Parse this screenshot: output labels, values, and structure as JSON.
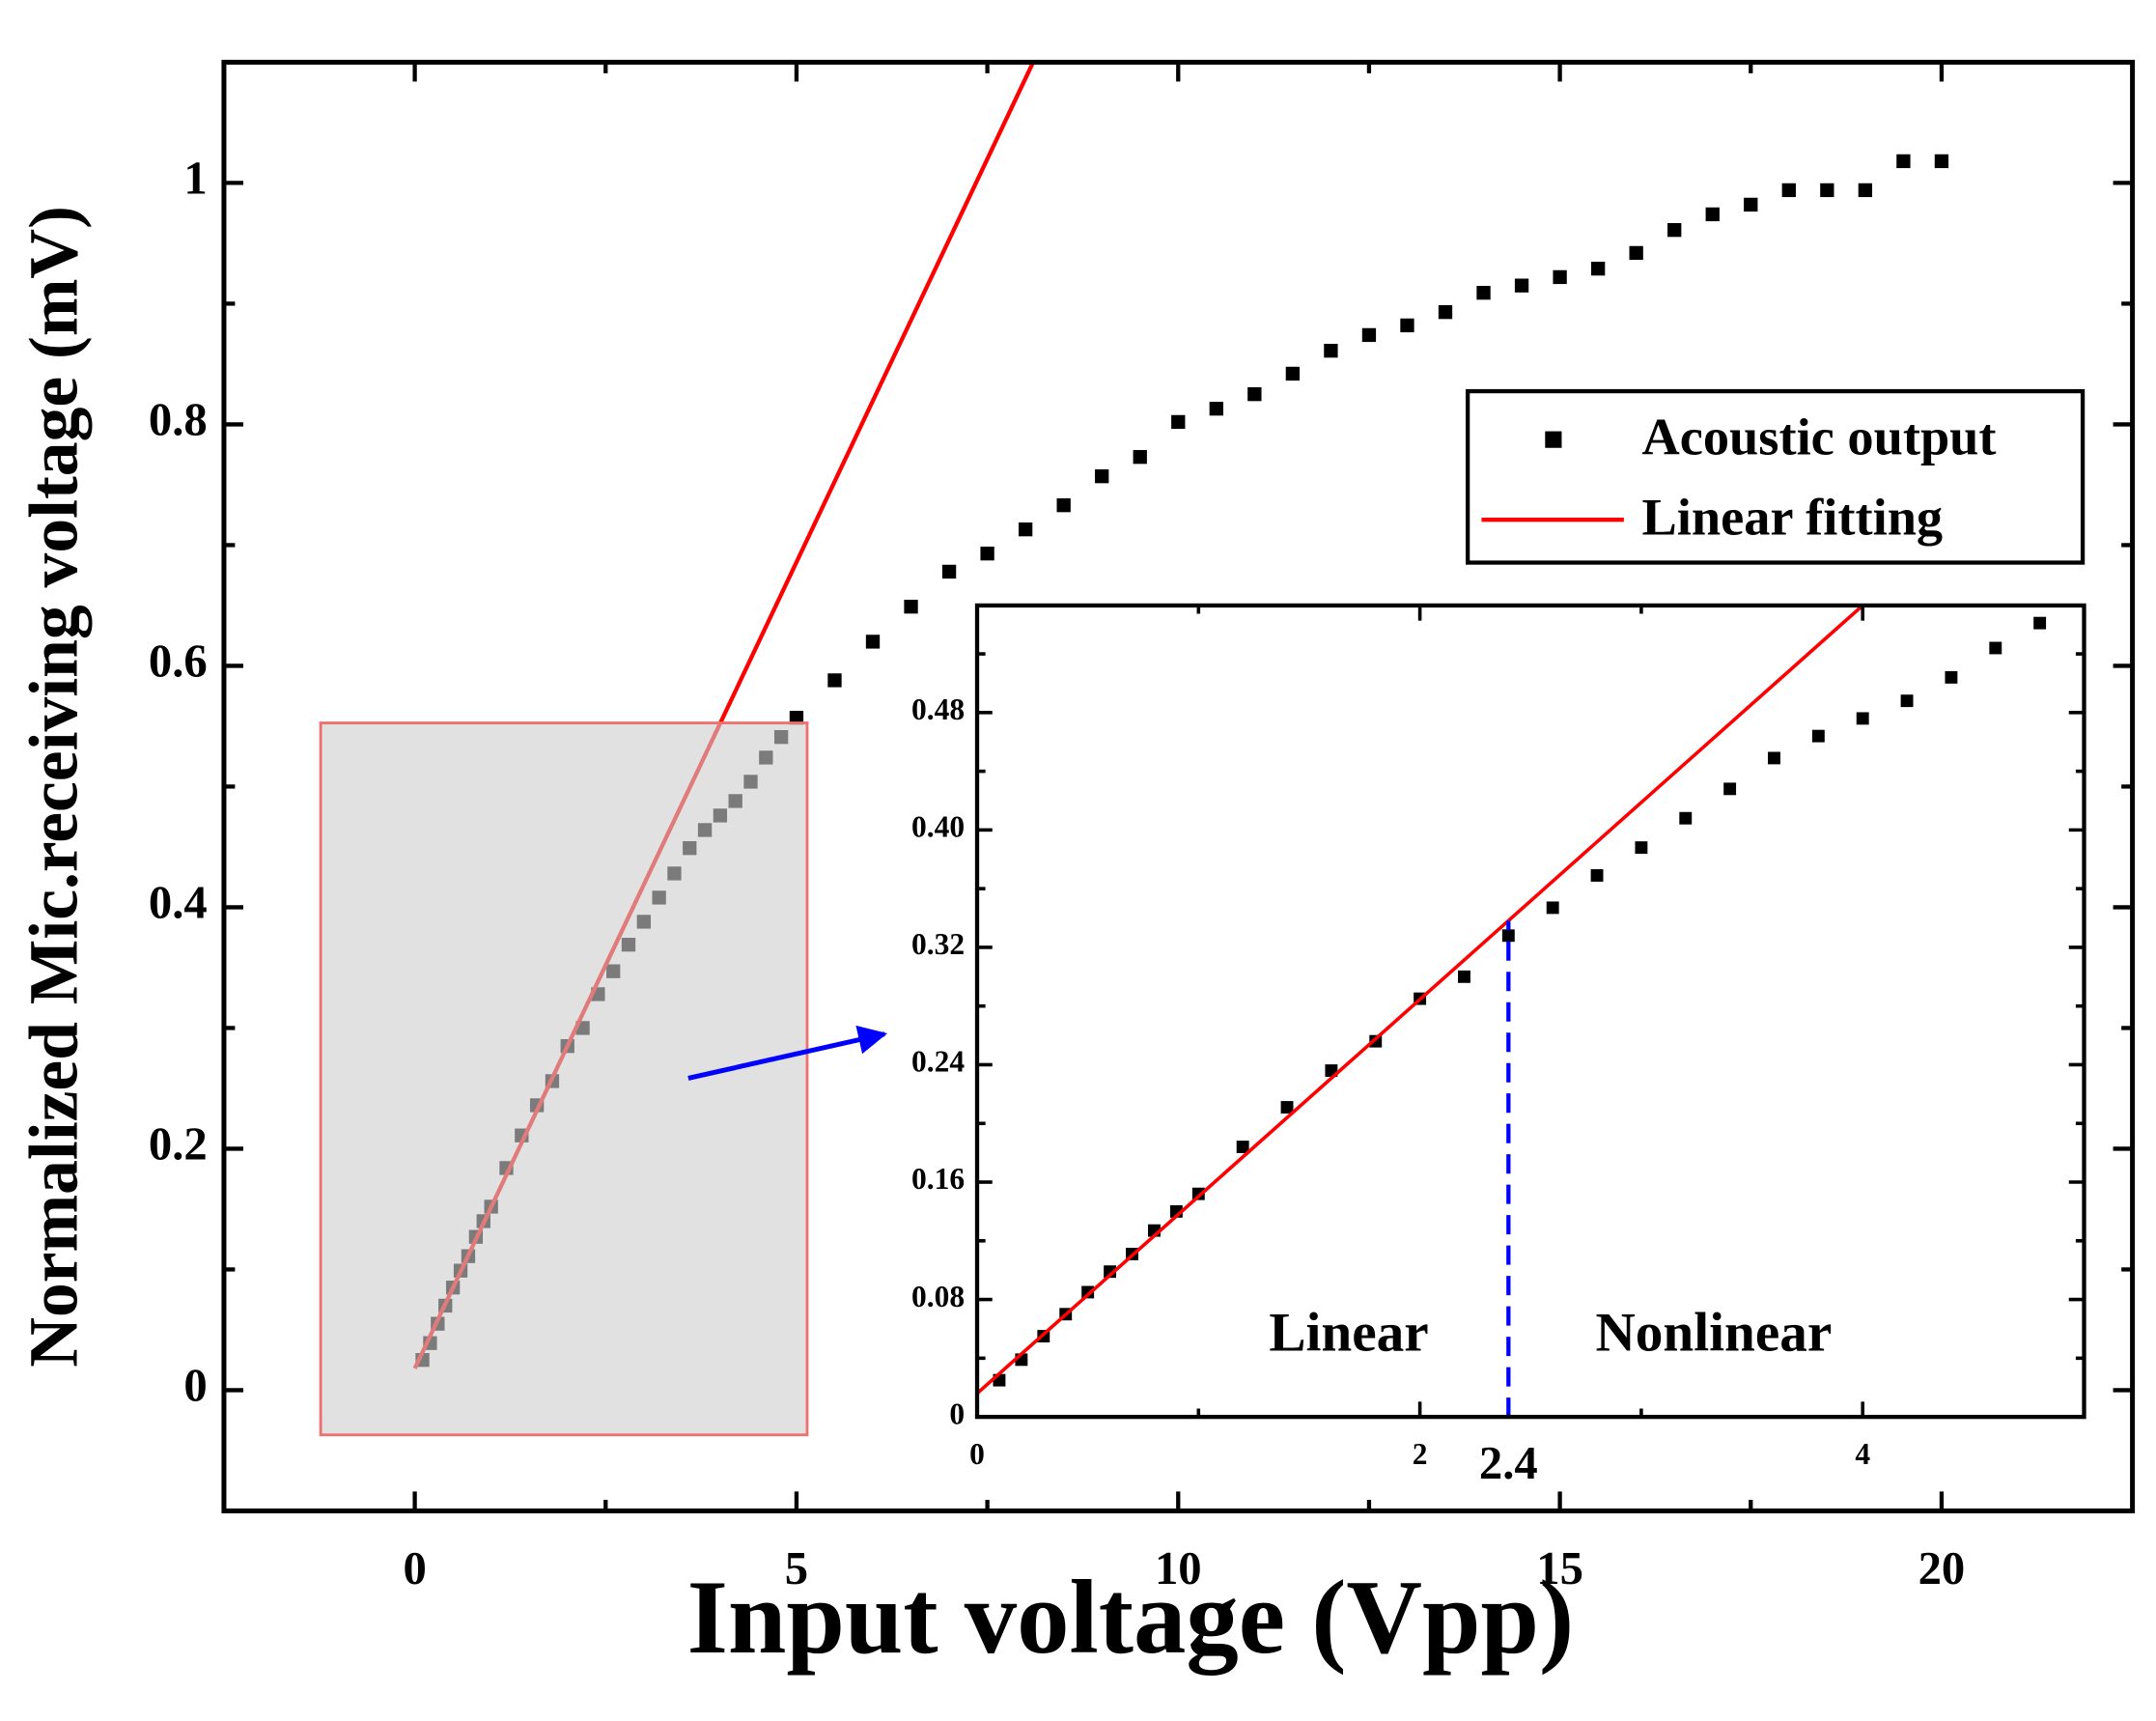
{
  "chart_data": [
    {
      "type": "scatter",
      "x_label": "Input voltage (Vpp)",
      "y_label": "Normalized Mic.receiving voltage (mV)",
      "xlim": [
        -2.5,
        22.5
      ],
      "ylim": [
        -0.1,
        1.1
      ],
      "xticks": [
        0,
        5,
        10,
        15,
        20
      ],
      "yticks": [
        0,
        0.2,
        0.4,
        0.6,
        0.8,
        1
      ],
      "xminorticks": [
        2.5,
        7.5,
        12.5,
        17.5
      ],
      "yminorticks": [
        0.1,
        0.3,
        0.5,
        0.7,
        0.9
      ],
      "legend": "upper right",
      "series": [
        {
          "name": "Acoustic output",
          "type": "scatter",
          "color": "#000000",
          "x": [
            0.1,
            0.2,
            0.3,
            0.4,
            0.5,
            0.6,
            0.7,
            0.8,
            0.9,
            1.0,
            1.2,
            1.4,
            1.6,
            1.8,
            2.0,
            2.2,
            2.4,
            2.6,
            2.8,
            3.0,
            3.2,
            3.4,
            3.6,
            3.8,
            4.0,
            4.2,
            4.4,
            4.6,
            4.8,
            5,
            5.5,
            6,
            6.5,
            7,
            7.5,
            8,
            8.5,
            9,
            9.5,
            10,
            10.5,
            11,
            11.5,
            12,
            12.5,
            13,
            13.5,
            14,
            14.5,
            15,
            15.5,
            16,
            16.5,
            17,
            17.5,
            18,
            18.5,
            19,
            19.5,
            20
          ],
          "values": [
            0.025,
            0.039,
            0.055,
            0.07,
            0.085,
            0.099,
            0.111,
            0.127,
            0.14,
            0.152,
            0.184,
            0.211,
            0.236,
            0.256,
            0.285,
            0.3,
            0.328,
            0.347,
            0.369,
            0.388,
            0.408,
            0.428,
            0.449,
            0.464,
            0.476,
            0.488,
            0.504,
            0.524,
            0.541,
            0.557,
            0.588,
            0.62,
            0.649,
            0.678,
            0.693,
            0.713,
            0.733,
            0.757,
            0.773,
            0.802,
            0.813,
            0.825,
            0.842,
            0.861,
            0.874,
            0.882,
            0.893,
            0.909,
            0.915,
            0.922,
            0.929,
            0.942,
            0.961,
            0.974,
            0.982,
            0.994,
            0.994,
            0.994,
            1.018,
            1.018
          ]
        },
        {
          "name": "Linear fitting",
          "type": "line",
          "color": "#ff0000",
          "x": [
            0,
            8.1
          ],
          "values": [
            0.018,
            1.1
          ]
        }
      ]
    },
    {
      "type": "scatter",
      "xlim": [
        0,
        5
      ],
      "ylim": [
        0,
        0.553
      ],
      "xticks": [
        0,
        2,
        4
      ],
      "yticks": [
        0,
        0.08,
        0.16,
        0.24,
        0.32,
        {
          "value": 0.4,
          "label": "0.40"
        },
        0.48
      ],
      "xminorticks": [
        1,
        3
      ],
      "yminorticks": [
        0.04,
        0.12,
        0.2,
        0.28,
        0.36,
        0.44,
        0.52
      ],
      "marker_x": 2.4,
      "marker_color": "#0000ff",
      "region_labels": [
        "Linear",
        "Nonlinear"
      ],
      "series": [
        {
          "type": "scatter",
          "color": "#000000",
          "x": [
            0.1,
            0.2,
            0.3,
            0.4,
            0.5,
            0.6,
            0.7,
            0.8,
            0.9,
            1.0,
            1.2,
            1.4,
            1.6,
            1.8,
            2.0,
            2.2,
            2.4,
            2.6,
            2.8,
            3.0,
            3.2,
            3.4,
            3.6,
            3.8,
            4.0,
            4.2,
            4.4,
            4.6,
            4.8
          ],
          "values": [
            0.025,
            0.039,
            0.055,
            0.07,
            0.085,
            0.099,
            0.111,
            0.127,
            0.14,
            0.152,
            0.184,
            0.211,
            0.236,
            0.256,
            0.285,
            0.3,
            0.328,
            0.347,
            0.369,
            0.388,
            0.408,
            0.428,
            0.449,
            0.464,
            0.476,
            0.488,
            0.504,
            0.524,
            0.541
          ]
        },
        {
          "type": "line",
          "color": "#ff0000",
          "x": [
            0,
            4
          ],
          "values": [
            0.016,
            0.553
          ]
        }
      ]
    }
  ]
}
